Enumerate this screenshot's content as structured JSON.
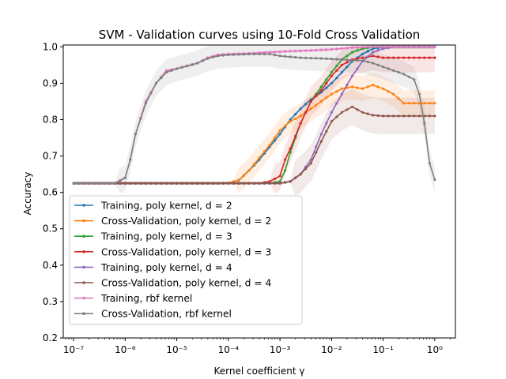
{
  "chart_data": {
    "type": "line",
    "title": "SVM - Validation curves using 10-Fold Cross Validation",
    "xlabel": "Kernel coefficient γ",
    "ylabel": "Accuracy",
    "xscale": "log",
    "xlim": [
      -7.2,
      0.4
    ],
    "ylim": [
      0.2,
      1.005
    ],
    "x_ticks": [
      {
        "exp": -7,
        "label": "10⁻⁷"
      },
      {
        "exp": -6,
        "label": "10⁻⁶"
      },
      {
        "exp": -5,
        "label": "10⁻⁵"
      },
      {
        "exp": -4,
        "label": "10⁻⁴"
      },
      {
        "exp": -3,
        "label": "10⁻³"
      },
      {
        "exp": -2,
        "label": "10⁻²"
      },
      {
        "exp": -1,
        "label": "10⁻¹"
      },
      {
        "exp": 0,
        "label": "10⁰"
      }
    ],
    "y_ticks": [
      "0.2",
      "0.3",
      "0.4",
      "0.5",
      "0.6",
      "0.7",
      "0.8",
      "0.9",
      "1.0"
    ],
    "legend_position": "lower-left",
    "grid": false,
    "series": [
      {
        "name": "Training, poly kernel, d = 2",
        "color": "#1f77b4",
        "band": 0.005,
        "points": [
          [
            -7,
            0.625
          ],
          [
            -4.2,
            0.625
          ],
          [
            -4,
            0.626
          ],
          [
            -3.8,
            0.633
          ],
          [
            -3.6,
            0.66
          ],
          [
            -3.4,
            0.69
          ],
          [
            -3.2,
            0.725
          ],
          [
            -3,
            0.76
          ],
          [
            -2.8,
            0.8
          ],
          [
            -2.6,
            0.83
          ],
          [
            -2.4,
            0.855
          ],
          [
            -2.2,
            0.875
          ],
          [
            -2,
            0.9
          ],
          [
            -1.8,
            0.93
          ],
          [
            -1.6,
            0.96
          ],
          [
            -1.4,
            0.98
          ],
          [
            -1.2,
            0.995
          ],
          [
            -1,
            1.0
          ],
          [
            0,
            1.0
          ]
        ]
      },
      {
        "name": "Cross-Validation, poly kernel, d = 2",
        "color": "#ff7f0e",
        "band": 0.035,
        "points": [
          [
            -7,
            0.625
          ],
          [
            -4.2,
            0.625
          ],
          [
            -4,
            0.626
          ],
          [
            -3.8,
            0.633
          ],
          [
            -3.6,
            0.66
          ],
          [
            -3.4,
            0.695
          ],
          [
            -3.2,
            0.73
          ],
          [
            -3,
            0.77
          ],
          [
            -2.8,
            0.795
          ],
          [
            -2.6,
            0.81
          ],
          [
            -2.4,
            0.83
          ],
          [
            -2.2,
            0.85
          ],
          [
            -2,
            0.87
          ],
          [
            -1.8,
            0.885
          ],
          [
            -1.6,
            0.89
          ],
          [
            -1.4,
            0.885
          ],
          [
            -1.2,
            0.895
          ],
          [
            -1,
            0.885
          ],
          [
            -0.8,
            0.87
          ],
          [
            -0.6,
            0.845
          ],
          [
            0,
            0.845
          ]
        ]
      },
      {
        "name": "Training, poly kernel, d = 3",
        "color": "#2ca02c",
        "band": 0.005,
        "points": [
          [
            -7,
            0.625
          ],
          [
            -3.2,
            0.625
          ],
          [
            -3,
            0.63
          ],
          [
            -2.9,
            0.66
          ],
          [
            -2.8,
            0.71
          ],
          [
            -2.6,
            0.79
          ],
          [
            -2.4,
            0.85
          ],
          [
            -2.2,
            0.89
          ],
          [
            -2,
            0.93
          ],
          [
            -1.8,
            0.965
          ],
          [
            -1.6,
            0.985
          ],
          [
            -1.4,
            0.995
          ],
          [
            -1.2,
            1.0
          ],
          [
            0,
            1.0
          ]
        ]
      },
      {
        "name": "Cross-Validation, poly kernel, d = 3",
        "color": "#d62728",
        "band": 0.04,
        "points": [
          [
            -7,
            0.625
          ],
          [
            -3.4,
            0.625
          ],
          [
            -3.2,
            0.63
          ],
          [
            -3,
            0.645
          ],
          [
            -2.9,
            0.69
          ],
          [
            -2.8,
            0.72
          ],
          [
            -2.6,
            0.79
          ],
          [
            -2.4,
            0.85
          ],
          [
            -2.2,
            0.88
          ],
          [
            -2,
            0.92
          ],
          [
            -1.8,
            0.95
          ],
          [
            -1.6,
            0.965
          ],
          [
            -1.4,
            0.97
          ],
          [
            -1.2,
            0.975
          ],
          [
            -1,
            0.97
          ],
          [
            0,
            0.97
          ]
        ]
      },
      {
        "name": "Training, poly kernel, d = 4",
        "color": "#9467bd",
        "band": 0.005,
        "points": [
          [
            -7,
            0.625
          ],
          [
            -3,
            0.625
          ],
          [
            -2.8,
            0.63
          ],
          [
            -2.6,
            0.65
          ],
          [
            -2.4,
            0.69
          ],
          [
            -2.2,
            0.76
          ],
          [
            -2,
            0.82
          ],
          [
            -1.8,
            0.87
          ],
          [
            -1.6,
            0.92
          ],
          [
            -1.4,
            0.96
          ],
          [
            -1.2,
            0.985
          ],
          [
            -1,
            0.995
          ],
          [
            -0.8,
            1.0
          ],
          [
            0,
            1.0
          ]
        ]
      },
      {
        "name": "Cross-Validation, poly kernel, d = 4",
        "color": "#8c564b",
        "band": 0.05,
        "points": [
          [
            -7,
            0.625
          ],
          [
            -3,
            0.625
          ],
          [
            -2.8,
            0.63
          ],
          [
            -2.6,
            0.65
          ],
          [
            -2.4,
            0.68
          ],
          [
            -2.2,
            0.74
          ],
          [
            -2,
            0.795
          ],
          [
            -1.8,
            0.82
          ],
          [
            -1.6,
            0.835
          ],
          [
            -1.4,
            0.82
          ],
          [
            -1.2,
            0.812
          ],
          [
            -1,
            0.81
          ],
          [
            0,
            0.81
          ]
        ]
      },
      {
        "name": "Training, rbf kernel",
        "color": "#e377c2",
        "band": 0.005,
        "points": [
          [
            -7,
            0.625
          ],
          [
            -6.2,
            0.625
          ],
          [
            -6,
            0.64
          ],
          [
            -5.9,
            0.69
          ],
          [
            -5.8,
            0.76
          ],
          [
            -5.6,
            0.85
          ],
          [
            -5.4,
            0.9
          ],
          [
            -5.2,
            0.935
          ],
          [
            -5,
            0.94
          ],
          [
            -4.8,
            0.948
          ],
          [
            -4.6,
            0.955
          ],
          [
            -4.4,
            0.97
          ],
          [
            -4.2,
            0.978
          ],
          [
            -4,
            0.98
          ],
          [
            -3.6,
            0.982
          ],
          [
            -3.2,
            0.985
          ],
          [
            -2.8,
            0.988
          ],
          [
            -2.4,
            0.99
          ],
          [
            -2,
            0.993
          ],
          [
            -1.6,
            0.998
          ],
          [
            -1.2,
            1.0
          ],
          [
            0,
            1.0
          ]
        ]
      },
      {
        "name": "Cross-Validation, rbf kernel",
        "color": "#7f7f7f",
        "band": 0.035,
        "points": [
          [
            -7,
            0.625
          ],
          [
            -6.2,
            0.625
          ],
          [
            -6,
            0.64
          ],
          [
            -5.9,
            0.69
          ],
          [
            -5.8,
            0.76
          ],
          [
            -5.6,
            0.845
          ],
          [
            -5.4,
            0.9
          ],
          [
            -5.2,
            0.93
          ],
          [
            -5,
            0.94
          ],
          [
            -4.8,
            0.947
          ],
          [
            -4.6,
            0.955
          ],
          [
            -4.4,
            0.968
          ],
          [
            -4.2,
            0.975
          ],
          [
            -4,
            0.978
          ],
          [
            -3.6,
            0.98
          ],
          [
            -3.2,
            0.98
          ],
          [
            -3,
            0.975
          ],
          [
            -2.6,
            0.97
          ],
          [
            -2.2,
            0.968
          ],
          [
            -1.8,
            0.965
          ],
          [
            -1.4,
            0.962
          ],
          [
            -1.2,
            0.955
          ],
          [
            -1,
            0.945
          ],
          [
            -0.8,
            0.935
          ],
          [
            -0.6,
            0.925
          ],
          [
            -0.4,
            0.91
          ],
          [
            -0.3,
            0.87
          ],
          [
            -0.2,
            0.79
          ],
          [
            -0.1,
            0.68
          ],
          [
            0,
            0.635
          ]
        ]
      }
    ]
  }
}
